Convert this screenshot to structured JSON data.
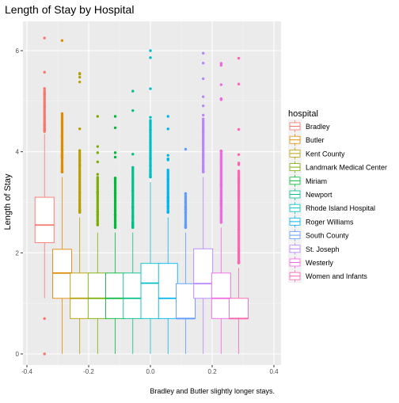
{
  "chart_data": {
    "type": "boxplot",
    "title": "Length of Stay by Hospital",
    "ylabel": "Length of Stay",
    "caption": "Bradley and Butler slightly longer stays.",
    "xlim": [
      -0.4,
      0.4
    ],
    "ylim": [
      0,
      6.25
    ],
    "x_ticks": [
      -0.4,
      -0.2,
      0.0,
      0.2,
      0.4
    ],
    "x_tick_labels": [
      "-0.4",
      "-0.2",
      "0.0",
      "0.2",
      "0.4"
    ],
    "y_ticks": [
      0,
      2,
      4,
      6
    ],
    "y_tick_labels": [
      "0",
      "2",
      "4",
      "6"
    ],
    "legend_title": "hospital",
    "legend_position": "right",
    "background": "#EBEBEB",
    "grid": true,
    "boxes": [
      {
        "name": "Bradley",
        "color": "#F8766D",
        "x": -0.343,
        "q1": 2.2,
        "median": 2.55,
        "q3": 3.1,
        "whisker_low": 1.1,
        "whisker_high": 4.35,
        "outliers_low": [
          0.7,
          0.0
        ],
        "outlier_high_min": 4.4,
        "outlier_high_max": 6.25
      },
      {
        "name": "Butler",
        "color": "#DE8C00",
        "x": -0.286,
        "q1": 1.1,
        "median": 1.6,
        "q3": 2.07,
        "whisker_low": 0.0,
        "whisker_high": 3.5,
        "outliers_low": [],
        "outlier_high_min": 3.6,
        "outlier_high_max": 6.2
      },
      {
        "name": "Kent County",
        "color": "#B79F00",
        "x": -0.229,
        "q1": 0.7,
        "median": 1.1,
        "q3": 1.6,
        "whisker_low": 0.0,
        "whisker_high": 2.7,
        "outliers_low": [],
        "outlier_high_min": 2.8,
        "outlier_high_max": 5.55
      },
      {
        "name": "Landmark Medical Center",
        "color": "#7CAE00",
        "x": -0.171,
        "q1": 0.7,
        "median": 1.1,
        "q3": 1.6,
        "whisker_low": 0.0,
        "whisker_high": 2.4,
        "outliers_low": [],
        "outlier_high_min": 2.55,
        "outlier_high_max": 4.7
      },
      {
        "name": "Miriam",
        "color": "#00BA38",
        "x": -0.114,
        "q1": 0.7,
        "median": 1.1,
        "q3": 1.6,
        "whisker_low": 0.0,
        "whisker_high": 2.4,
        "outliers_low": [],
        "outlier_high_min": 2.5,
        "outlier_high_max": 4.7
      },
      {
        "name": "Newport",
        "color": "#00C08B",
        "x": -0.057,
        "q1": 0.7,
        "median": 1.1,
        "q3": 1.6,
        "whisker_low": 0.0,
        "whisker_high": 2.4,
        "outliers_low": [],
        "outlier_high_min": 2.5,
        "outlier_high_max": 5.2
      },
      {
        "name": "Rhode Island Hospital",
        "color": "#00BFC4",
        "x": 0.0,
        "q1": 0.7,
        "median": 1.4,
        "q3": 1.79,
        "whisker_low": 0.0,
        "whisker_high": 3.4,
        "outliers_low": [],
        "outlier_high_min": 3.5,
        "outlier_high_max": 6.0
      },
      {
        "name": "Roger Williams",
        "color": "#00B4F0",
        "x": 0.057,
        "q1": 0.7,
        "median": 1.1,
        "q3": 1.79,
        "whisker_low": 0.0,
        "whisker_high": 2.7,
        "outliers_low": [],
        "outlier_high_min": 2.8,
        "outlier_high_max": 4.7
      },
      {
        "name": "South County",
        "color": "#619CFF",
        "x": 0.114,
        "q1": 0.7,
        "median": 0.7,
        "q3": 1.39,
        "whisker_low": 0.0,
        "whisker_high": 2.4,
        "outliers_low": [],
        "outlier_high_min": 2.5,
        "outlier_high_max": 4.05
      },
      {
        "name": "St. Joseph",
        "color": "#B983FF",
        "x": 0.171,
        "q1": 1.1,
        "median": 1.39,
        "q3": 2.08,
        "whisker_low": 0.0,
        "whisker_high": 3.5,
        "outliers_low": [],
        "outlier_high_min": 3.6,
        "outlier_high_max": 5.95
      },
      {
        "name": "Westerly",
        "color": "#F564E3",
        "x": 0.229,
        "q1": 0.7,
        "median": 1.1,
        "q3": 1.6,
        "whisker_low": 0.0,
        "whisker_high": 2.5,
        "outliers_low": [],
        "outlier_high_min": 2.6,
        "outlier_high_max": 5.75
      },
      {
        "name": "Women and Infants",
        "color": "#FF64B0",
        "x": 0.286,
        "q1": 0.7,
        "median": 0.7,
        "q3": 1.1,
        "whisker_low": 0.0,
        "whisker_high": 1.7,
        "outliers_low": [],
        "outlier_high_min": 1.8,
        "outlier_high_max": 5.85
      }
    ]
  }
}
